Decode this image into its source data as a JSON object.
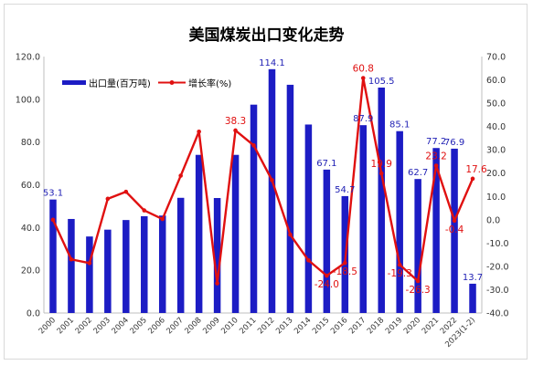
{
  "chart_data": {
    "type": "bar",
    "title": "美国煤炭出口变化走势",
    "categories": [
      "2000",
      "2001",
      "2002",
      "2003",
      "2004",
      "2005",
      "2006",
      "2007",
      "2008",
      "2009",
      "2010",
      "2011",
      "2012",
      "2013",
      "2014",
      "2015",
      "2016",
      "2017",
      "2018",
      "2019",
      "2020",
      "2021",
      "2022",
      "2023(1-2)"
    ],
    "series": [
      {
        "name": "出口量(百万吨)",
        "type": "bar",
        "axis": "left",
        "color": "#1c1cc4",
        "values": [
          53.1,
          44,
          35.8,
          39,
          43.5,
          45.3,
          45.6,
          53.9,
          74,
          53.8,
          74,
          97.5,
          114.1,
          106.8,
          88.2,
          67.1,
          54.7,
          87.9,
          105.5,
          85.1,
          62.7,
          77.2,
          76.9,
          13.7
        ],
        "labeled": [
          0,
          12,
          15,
          16,
          17,
          18,
          19,
          20,
          21,
          22,
          23
        ]
      },
      {
        "name": "增长率(%)",
        "type": "line",
        "axis": "right",
        "color": "#e01010",
        "values": [
          0,
          -17,
          -18.6,
          9,
          12,
          4,
          0.3,
          18.9,
          37.8,
          -27.3,
          38.3,
          31.9,
          17,
          -6.4,
          -17.4,
          -24,
          -18.5,
          60.8,
          19.9,
          -19.3,
          -26.3,
          23.2,
          -0.4,
          17.6
        ],
        "labeled": [
          10,
          15,
          16,
          17,
          18,
          19,
          20,
          21,
          22,
          23
        ]
      }
    ],
    "ylim_left": [
      0,
      120
    ],
    "ylim_right": [
      -40,
      70
    ],
    "yticks_left": [
      "0.0",
      "20.0",
      "40.0",
      "60.0",
      "80.0",
      "100.0",
      "120.0"
    ],
    "yticks_right": [
      "-40.0",
      "-30.0",
      "-20.0",
      "-10.0",
      "0.0",
      "10.0",
      "20.0",
      "30.0",
      "40.0",
      "50.0",
      "60.0",
      "70.0"
    ],
    "grid": false,
    "legend": "top-left"
  }
}
